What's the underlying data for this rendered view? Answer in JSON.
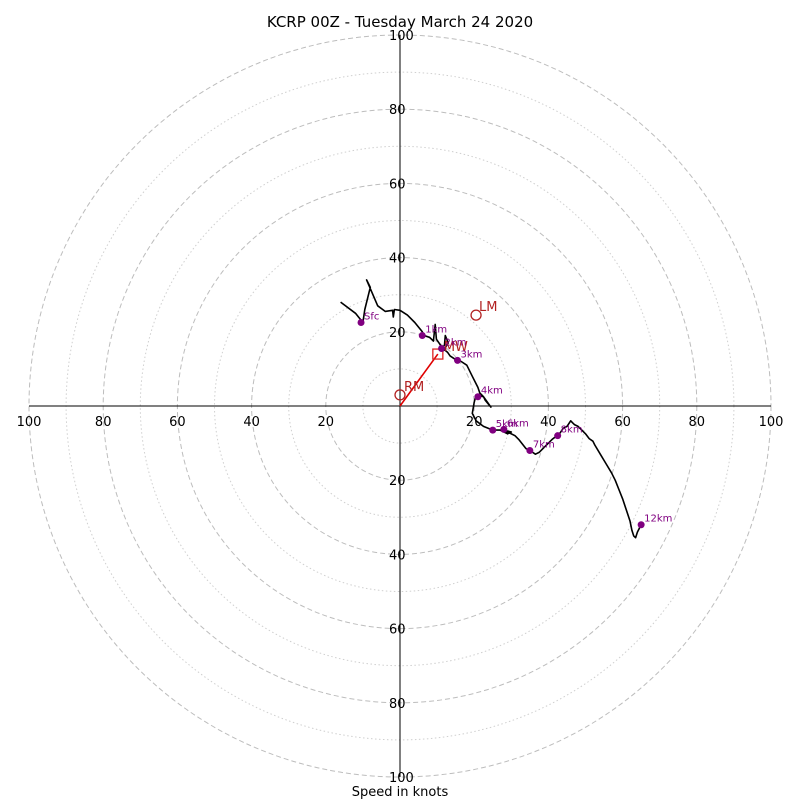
{
  "chart_data": {
    "type": "hodograph",
    "title": "KCRP 00Z - Tuesday March 24 2020",
    "xlabel": "Speed in knots",
    "xlim": [
      -100,
      100
    ],
    "ylim": [
      -100,
      100
    ],
    "rings": {
      "major": [
        20,
        40,
        60,
        80,
        100
      ],
      "minor": [
        10,
        30,
        50,
        70,
        90
      ]
    },
    "x_ticks": [
      {
        "value": -100,
        "label": "100"
      },
      {
        "value": -80,
        "label": "80"
      },
      {
        "value": -60,
        "label": "60"
      },
      {
        "value": -40,
        "label": "40"
      },
      {
        "value": -20,
        "label": "20"
      },
      {
        "value": 20,
        "label": "20"
      },
      {
        "value": 40,
        "label": "40"
      },
      {
        "value": 60,
        "label": "60"
      },
      {
        "value": 80,
        "label": "80"
      },
      {
        "value": 100,
        "label": "100"
      }
    ],
    "y_ticks": [
      {
        "value": 100,
        "label": "100"
      },
      {
        "value": 80,
        "label": "80"
      },
      {
        "value": 60,
        "label": "60"
      },
      {
        "value": 40,
        "label": "40"
      },
      {
        "value": 20,
        "label": "20"
      },
      {
        "value": -20,
        "label": "20"
      },
      {
        "value": -40,
        "label": "40"
      },
      {
        "value": -60,
        "label": "60"
      },
      {
        "value": -80,
        "label": "80"
      },
      {
        "value": -100,
        "label": "100"
      }
    ],
    "hodograph": [
      [
        -16,
        28
      ],
      [
        -12,
        25
      ],
      [
        -10,
        22.5
      ],
      [
        -9.5,
        26
      ],
      [
        -8,
        32
      ],
      [
        -9,
        34
      ],
      [
        -6,
        27
      ],
      [
        -4,
        25.5
      ],
      [
        -2,
        25.8
      ],
      [
        -1.8,
        24
      ],
      [
        -1.5,
        26
      ],
      [
        0,
        25.8
      ],
      [
        2,
        24.5
      ],
      [
        4,
        22.5
      ],
      [
        6,
        20
      ],
      [
        6.5,
        19
      ],
      [
        8,
        18.5
      ],
      [
        9,
        17.5
      ],
      [
        9.5,
        22
      ],
      [
        9.8,
        18
      ],
      [
        10.5,
        17
      ],
      [
        11.5,
        15.5
      ],
      [
        12,
        16.5
      ],
      [
        12.2,
        19
      ],
      [
        13,
        17
      ],
      [
        11.8,
        15
      ],
      [
        11,
        16
      ],
      [
        12.8,
        14.5
      ],
      [
        13.5,
        13.5
      ],
      [
        15,
        12.5
      ],
      [
        16.5,
        12
      ],
      [
        18,
        11
      ],
      [
        19.5,
        8
      ],
      [
        21,
        5
      ],
      [
        21.5,
        3.5
      ],
      [
        22.5,
        2.5
      ],
      [
        23,
        1.5
      ],
      [
        24.5,
        -0.3
      ],
      [
        22.5,
        2.5
      ],
      [
        20.5,
        3
      ],
      [
        20,
        1
      ],
      [
        19.5,
        -2
      ],
      [
        20.5,
        -4
      ],
      [
        22.5,
        -5.5
      ],
      [
        25,
        -6.5
      ],
      [
        27,
        -6.5
      ],
      [
        29,
        -7.5
      ],
      [
        30,
        -7
      ],
      [
        28,
        -6.5
      ],
      [
        31,
        -8
      ],
      [
        32,
        -9
      ],
      [
        34,
        -11.5
      ],
      [
        35,
        -12
      ],
      [
        36.5,
        -13
      ],
      [
        37.5,
        -12.5
      ],
      [
        39,
        -11
      ],
      [
        41,
        -9
      ],
      [
        43,
        -7.5
      ],
      [
        44,
        -6
      ],
      [
        45,
        -5.5
      ],
      [
        46,
        -4
      ],
      [
        46.5,
        -4.5
      ],
      [
        47,
        -5
      ],
      [
        48,
        -5.5
      ],
      [
        49,
        -6.5
      ],
      [
        50,
        -7.5
      ],
      [
        51,
        -8.8
      ],
      [
        52,
        -9.5
      ],
      [
        52.5,
        -10.5
      ],
      [
        54,
        -13
      ],
      [
        55.5,
        -15.5
      ],
      [
        57,
        -18
      ],
      [
        58,
        -20
      ],
      [
        59,
        -22.5
      ],
      [
        60,
        -25
      ],
      [
        61,
        -28
      ],
      [
        62,
        -31
      ],
      [
        62.5,
        -33.5
      ],
      [
        63,
        -35
      ],
      [
        63.5,
        -35.5
      ],
      [
        64,
        -34
      ],
      [
        64.5,
        -33
      ],
      [
        65,
        -32
      ]
    ],
    "height_markers": [
      {
        "label": "Sfc",
        "u": -10.5,
        "v": 22.5
      },
      {
        "label": "1km",
        "u": 6,
        "v": 19
      },
      {
        "label": "2km",
        "u": 11.2,
        "v": 15.5
      },
      {
        "label": "3km",
        "u": 15.5,
        "v": 12.3
      },
      {
        "label": "4km",
        "u": 21,
        "v": 2.5
      },
      {
        "label": "5km",
        "u": 25,
        "v": -6.5
      },
      {
        "label": "6km",
        "u": 28,
        "v": -6.3
      },
      {
        "label": "7km",
        "u": 35,
        "v": -12
      },
      {
        "label": "8km",
        "u": 42.5,
        "v": -8
      },
      {
        "label": "12km",
        "u": 65,
        "v": -32
      }
    ],
    "storm_motion": {
      "RM": {
        "label": "RM",
        "u": 0,
        "v": 3
      },
      "LM": {
        "label": "LM",
        "u": 20.5,
        "v": 24.5
      },
      "MW": {
        "label": "MW",
        "u": 10.2,
        "v": 14
      }
    }
  }
}
